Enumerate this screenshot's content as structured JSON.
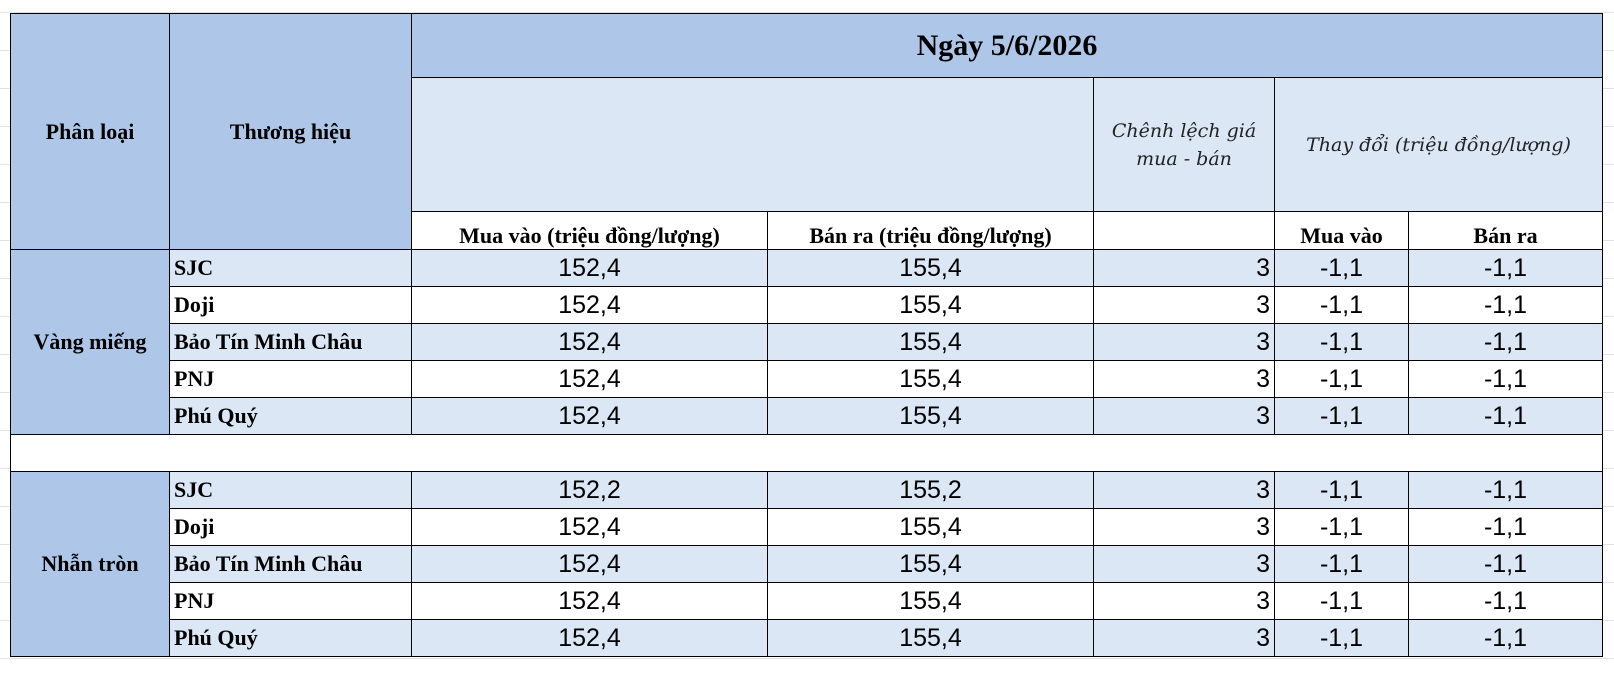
{
  "header": {
    "category": "Phân loại",
    "brand": "Thương hiệu",
    "date": "Ngày 5/6/2026",
    "spread": "Chênh lệch giá mua - bán",
    "change": "Thay đổi (triệu đồng/lượng)",
    "buy": "Mua vào (triệu đồng/lượng)",
    "sell": "Bán ra (triệu đồng/lượng)",
    "change_buy": "Mua vào",
    "change_sell": "Bán ra"
  },
  "groups": [
    {
      "name": "Vàng miếng",
      "rows": [
        [
          "SJC",
          "152,4",
          "155,4",
          "3",
          "-1,1",
          "-1,1"
        ],
        [
          "Doji",
          "152,4",
          "155,4",
          "3",
          "-1,1",
          "-1,1"
        ],
        [
          "Bảo Tín Minh Châu",
          "152,4",
          "155,4",
          "3",
          "-1,1",
          "-1,1"
        ],
        [
          "PNJ",
          "152,4",
          "155,4",
          "3",
          "-1,1",
          "-1,1"
        ],
        [
          "Phú Quý",
          "152,4",
          "155,4",
          "3",
          "-1,1",
          "-1,1"
        ]
      ]
    },
    {
      "name": "Nhẫn tròn",
      "rows": [
        [
          "SJC",
          "152,2",
          "155,2",
          "3",
          "-1,1",
          "-1,1"
        ],
        [
          "Doji",
          "152,4",
          "155,4",
          "3",
          "-1,1",
          "-1,1"
        ],
        [
          "Bảo Tín Minh Châu",
          "152,4",
          "155,4",
          "3",
          "-1,1",
          "-1,1"
        ],
        [
          "PNJ",
          "152,4",
          "155,4",
          "3",
          "-1,1",
          "-1,1"
        ],
        [
          "Phú Quý",
          "152,4",
          "155,4",
          "3",
          "-1,1",
          "-1,1"
        ]
      ]
    }
  ]
}
